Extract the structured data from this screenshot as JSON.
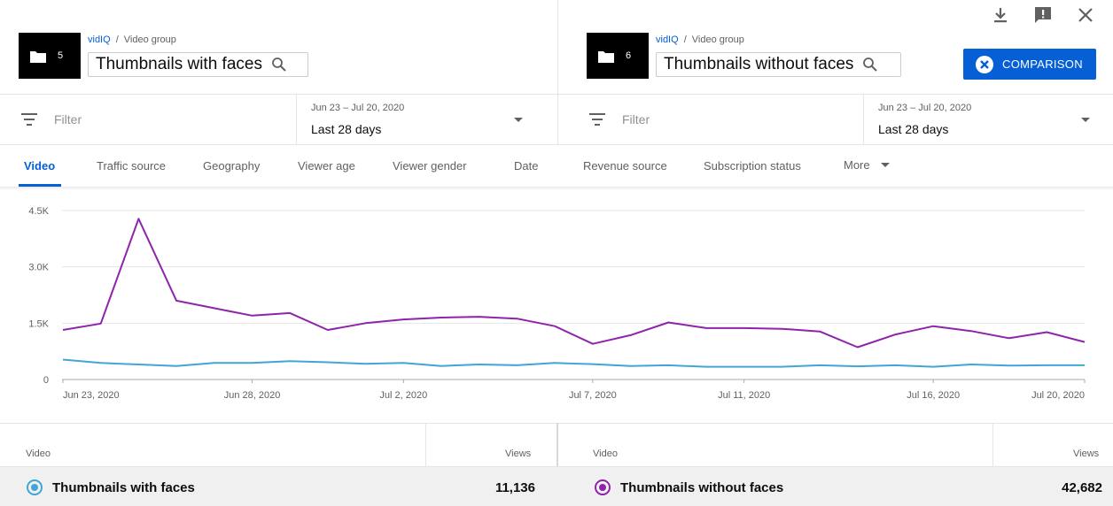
{
  "left_panel": {
    "thumb_count": "5",
    "breadcrumb_brand": "vidIQ",
    "breadcrumb_sep": "/",
    "breadcrumb_section": "Video group",
    "title": "Thumbnails with faces",
    "filter_placeholder": "Filter",
    "date_range": "Jun 23 – Jul 20, 2020",
    "date_preset": "Last 28 days"
  },
  "right_panel": {
    "thumb_count": "6",
    "breadcrumb_brand": "vidIQ",
    "breadcrumb_sep": "/",
    "breadcrumb_section": "Video group",
    "title": "Thumbnails without faces",
    "filter_placeholder": "Filter",
    "date_range": "Jun 23 – Jul 20, 2020",
    "date_preset": "Last 28 days",
    "comparison_button": "COMPARISON"
  },
  "top_icons": [
    "download-icon",
    "feedback-icon",
    "close-icon"
  ],
  "tabs": [
    {
      "label": "Video",
      "active": true
    },
    {
      "label": "Traffic source",
      "active": false
    },
    {
      "label": "Geography",
      "active": false
    },
    {
      "label": "Viewer age",
      "active": false
    },
    {
      "label": "Viewer gender",
      "active": false
    },
    {
      "label": "Date",
      "active": false
    },
    {
      "label": "Revenue source",
      "active": false
    },
    {
      "label": "Subscription status",
      "active": false
    },
    {
      "label": "More",
      "active": false
    }
  ],
  "chart_data": {
    "type": "line",
    "y_ticks": [
      "0",
      "1.5K",
      "3.0K",
      "4.5K"
    ],
    "ylim": [
      0,
      4500
    ],
    "x_tick_labels": [
      "Jun 23, 2020",
      "Jun 28, 2020",
      "Jul 2, 2020",
      "Jul 7, 2020",
      "Jul 11, 2020",
      "Jul 16, 2020",
      "Jul 20, 2020"
    ],
    "x_tick_day_index": [
      0,
      5,
      9,
      14,
      18,
      23,
      27
    ],
    "x": [
      "Jun 23",
      "Jun 24",
      "Jun 25",
      "Jun 26",
      "Jun 27",
      "Jun 28",
      "Jun 29",
      "Jun 30",
      "Jul 1",
      "Jul 2",
      "Jul 3",
      "Jul 4",
      "Jul 5",
      "Jul 6",
      "Jul 7",
      "Jul 8",
      "Jul 9",
      "Jul 10",
      "Jul 11",
      "Jul 12",
      "Jul 13",
      "Jul 14",
      "Jul 15",
      "Jul 16",
      "Jul 17",
      "Jul 18",
      "Jul 19",
      "Jul 20"
    ],
    "series": [
      {
        "color": "#8e24aa",
        "values": [
          1320,
          1490,
          4280,
          2100,
          1900,
          1700,
          1770,
          1320,
          1500,
          1600,
          1650,
          1670,
          1620,
          1420,
          950,
          1180,
          1520,
          1370,
          1370,
          1350,
          1280,
          860,
          1200,
          1420,
          1290,
          1100,
          1260,
          1000
        ]
      },
      {
        "color": "#41a6d6",
        "values": [
          530,
          440,
          400,
          360,
          440,
          440,
          490,
          460,
          420,
          440,
          360,
          400,
          380,
          440,
          410,
          360,
          380,
          340,
          340,
          340,
          380,
          350,
          380,
          340,
          400,
          370,
          380,
          380
        ]
      }
    ]
  },
  "table": {
    "left": {
      "col_video": "Video",
      "col_views": "Views",
      "name": "Thumbnails with faces",
      "views": "11,136",
      "color": "#41a6d6"
    },
    "right": {
      "col_video": "Video",
      "col_views": "Views",
      "name": "Thumbnails without faces",
      "views": "42,682",
      "color": "#8e24aa"
    }
  }
}
